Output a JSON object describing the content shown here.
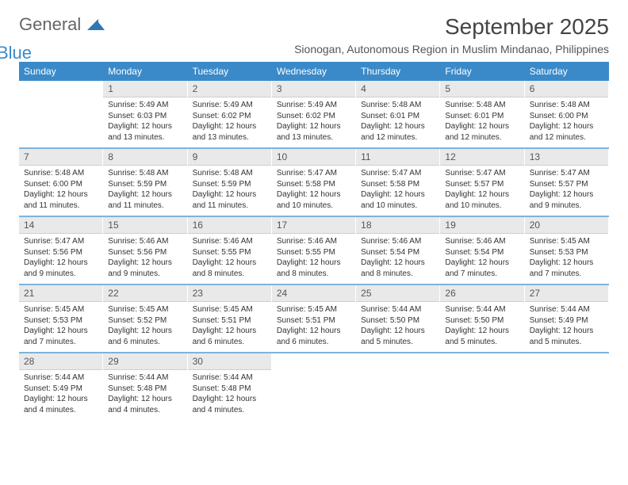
{
  "logo": {
    "text1": "General",
    "text2": "Blue"
  },
  "header": {
    "month_title": "September 2025",
    "subtitle": "Sionogan, Autonomous Region in Muslim Mindanao, Philippines"
  },
  "colors": {
    "header_bg": "#3a8ac9",
    "header_text": "#ffffff",
    "daynum_bg": "#e9e9e9",
    "text": "#333333"
  },
  "daynames": [
    "Sunday",
    "Monday",
    "Tuesday",
    "Wednesday",
    "Thursday",
    "Friday",
    "Saturday"
  ],
  "weeks": [
    [
      {
        "num": "",
        "sunrise": "",
        "sunset": "",
        "daylight": ""
      },
      {
        "num": "1",
        "sunrise": "Sunrise: 5:49 AM",
        "sunset": "Sunset: 6:03 PM",
        "daylight": "Daylight: 12 hours and 13 minutes."
      },
      {
        "num": "2",
        "sunrise": "Sunrise: 5:49 AM",
        "sunset": "Sunset: 6:02 PM",
        "daylight": "Daylight: 12 hours and 13 minutes."
      },
      {
        "num": "3",
        "sunrise": "Sunrise: 5:49 AM",
        "sunset": "Sunset: 6:02 PM",
        "daylight": "Daylight: 12 hours and 13 minutes."
      },
      {
        "num": "4",
        "sunrise": "Sunrise: 5:48 AM",
        "sunset": "Sunset: 6:01 PM",
        "daylight": "Daylight: 12 hours and 12 minutes."
      },
      {
        "num": "5",
        "sunrise": "Sunrise: 5:48 AM",
        "sunset": "Sunset: 6:01 PM",
        "daylight": "Daylight: 12 hours and 12 minutes."
      },
      {
        "num": "6",
        "sunrise": "Sunrise: 5:48 AM",
        "sunset": "Sunset: 6:00 PM",
        "daylight": "Daylight: 12 hours and 12 minutes."
      }
    ],
    [
      {
        "num": "7",
        "sunrise": "Sunrise: 5:48 AM",
        "sunset": "Sunset: 6:00 PM",
        "daylight": "Daylight: 12 hours and 11 minutes."
      },
      {
        "num": "8",
        "sunrise": "Sunrise: 5:48 AM",
        "sunset": "Sunset: 5:59 PM",
        "daylight": "Daylight: 12 hours and 11 minutes."
      },
      {
        "num": "9",
        "sunrise": "Sunrise: 5:48 AM",
        "sunset": "Sunset: 5:59 PM",
        "daylight": "Daylight: 12 hours and 11 minutes."
      },
      {
        "num": "10",
        "sunrise": "Sunrise: 5:47 AM",
        "sunset": "Sunset: 5:58 PM",
        "daylight": "Daylight: 12 hours and 10 minutes."
      },
      {
        "num": "11",
        "sunrise": "Sunrise: 5:47 AM",
        "sunset": "Sunset: 5:58 PM",
        "daylight": "Daylight: 12 hours and 10 minutes."
      },
      {
        "num": "12",
        "sunrise": "Sunrise: 5:47 AM",
        "sunset": "Sunset: 5:57 PM",
        "daylight": "Daylight: 12 hours and 10 minutes."
      },
      {
        "num": "13",
        "sunrise": "Sunrise: 5:47 AM",
        "sunset": "Sunset: 5:57 PM",
        "daylight": "Daylight: 12 hours and 9 minutes."
      }
    ],
    [
      {
        "num": "14",
        "sunrise": "Sunrise: 5:47 AM",
        "sunset": "Sunset: 5:56 PM",
        "daylight": "Daylight: 12 hours and 9 minutes."
      },
      {
        "num": "15",
        "sunrise": "Sunrise: 5:46 AM",
        "sunset": "Sunset: 5:56 PM",
        "daylight": "Daylight: 12 hours and 9 minutes."
      },
      {
        "num": "16",
        "sunrise": "Sunrise: 5:46 AM",
        "sunset": "Sunset: 5:55 PM",
        "daylight": "Daylight: 12 hours and 8 minutes."
      },
      {
        "num": "17",
        "sunrise": "Sunrise: 5:46 AM",
        "sunset": "Sunset: 5:55 PM",
        "daylight": "Daylight: 12 hours and 8 minutes."
      },
      {
        "num": "18",
        "sunrise": "Sunrise: 5:46 AM",
        "sunset": "Sunset: 5:54 PM",
        "daylight": "Daylight: 12 hours and 8 minutes."
      },
      {
        "num": "19",
        "sunrise": "Sunrise: 5:46 AM",
        "sunset": "Sunset: 5:54 PM",
        "daylight": "Daylight: 12 hours and 7 minutes."
      },
      {
        "num": "20",
        "sunrise": "Sunrise: 5:45 AM",
        "sunset": "Sunset: 5:53 PM",
        "daylight": "Daylight: 12 hours and 7 minutes."
      }
    ],
    [
      {
        "num": "21",
        "sunrise": "Sunrise: 5:45 AM",
        "sunset": "Sunset: 5:53 PM",
        "daylight": "Daylight: 12 hours and 7 minutes."
      },
      {
        "num": "22",
        "sunrise": "Sunrise: 5:45 AM",
        "sunset": "Sunset: 5:52 PM",
        "daylight": "Daylight: 12 hours and 6 minutes."
      },
      {
        "num": "23",
        "sunrise": "Sunrise: 5:45 AM",
        "sunset": "Sunset: 5:51 PM",
        "daylight": "Daylight: 12 hours and 6 minutes."
      },
      {
        "num": "24",
        "sunrise": "Sunrise: 5:45 AM",
        "sunset": "Sunset: 5:51 PM",
        "daylight": "Daylight: 12 hours and 6 minutes."
      },
      {
        "num": "25",
        "sunrise": "Sunrise: 5:44 AM",
        "sunset": "Sunset: 5:50 PM",
        "daylight": "Daylight: 12 hours and 5 minutes."
      },
      {
        "num": "26",
        "sunrise": "Sunrise: 5:44 AM",
        "sunset": "Sunset: 5:50 PM",
        "daylight": "Daylight: 12 hours and 5 minutes."
      },
      {
        "num": "27",
        "sunrise": "Sunrise: 5:44 AM",
        "sunset": "Sunset: 5:49 PM",
        "daylight": "Daylight: 12 hours and 5 minutes."
      }
    ],
    [
      {
        "num": "28",
        "sunrise": "Sunrise: 5:44 AM",
        "sunset": "Sunset: 5:49 PM",
        "daylight": "Daylight: 12 hours and 4 minutes."
      },
      {
        "num": "29",
        "sunrise": "Sunrise: 5:44 AM",
        "sunset": "Sunset: 5:48 PM",
        "daylight": "Daylight: 12 hours and 4 minutes."
      },
      {
        "num": "30",
        "sunrise": "Sunrise: 5:44 AM",
        "sunset": "Sunset: 5:48 PM",
        "daylight": "Daylight: 12 hours and 4 minutes."
      },
      {
        "num": "",
        "sunrise": "",
        "sunset": "",
        "daylight": ""
      },
      {
        "num": "",
        "sunrise": "",
        "sunset": "",
        "daylight": ""
      },
      {
        "num": "",
        "sunrise": "",
        "sunset": "",
        "daylight": ""
      },
      {
        "num": "",
        "sunrise": "",
        "sunset": "",
        "daylight": ""
      }
    ]
  ]
}
